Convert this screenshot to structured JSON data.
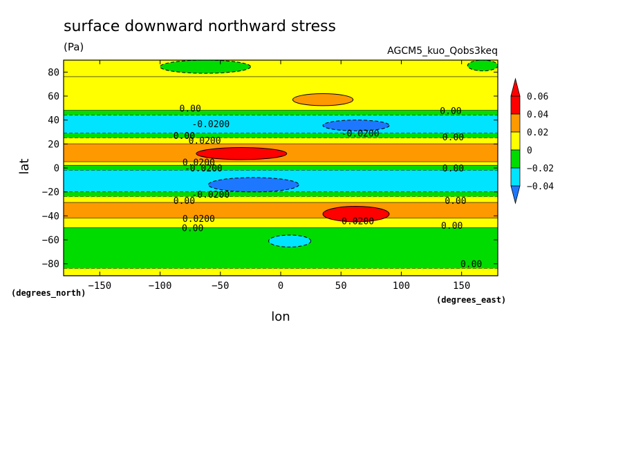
{
  "chart_data": {
    "type": "heatmap",
    "title": "surface downward northward stress",
    "units": "(Pa)",
    "dataset": "AGCM5_kuo_Qobs3keq",
    "xlabel": "lon",
    "ylabel": "lat",
    "x_units": "(degrees_east)",
    "y_units": "(degrees_north)",
    "xlim": [
      -180,
      180
    ],
    "ylim": [
      -90,
      90
    ],
    "x_ticks": [
      -150,
      -100,
      -50,
      0,
      50,
      100,
      150
    ],
    "x_tick_labels": [
      "−150",
      "−100",
      "−50",
      "0",
      "50",
      "100",
      "150"
    ],
    "y_ticks": [
      -80,
      -60,
      -40,
      -20,
      0,
      20,
      40,
      60,
      80
    ],
    "y_tick_labels": [
      "−80",
      "−60",
      "−40",
      "−20",
      "0",
      "20",
      "40",
      "60",
      "80"
    ],
    "colorbar": {
      "levels": [
        -0.04,
        -0.02,
        0,
        0.02,
        0.04,
        0.06
      ],
      "labels": [
        "−0.04",
        "−0.02",
        "0",
        "0.02",
        "0.04",
        "0.06"
      ],
      "colors": [
        "#1e78ff",
        "#00e4ff",
        "#00dc00",
        "#ffff00",
        "#ff9900",
        "#ff0000"
      ],
      "extend": "both"
    },
    "zonal_bands": [
      {
        "lat_min": 76,
        "lat_max": 90,
        "value": 0.005
      },
      {
        "lat_min": 48,
        "lat_max": 76,
        "value": 0.01
      },
      {
        "lat_min": 44,
        "lat_max": 48,
        "value": -0.01
      },
      {
        "lat_min": 29,
        "lat_max": 44,
        "value": -0.03
      },
      {
        "lat_min": 25,
        "lat_max": 29,
        "value": -0.01
      },
      {
        "lat_min": 20,
        "lat_max": 25,
        "value": 0.01
      },
      {
        "lat_min": 5,
        "lat_max": 20,
        "value": 0.03
      },
      {
        "lat_min": 2,
        "lat_max": 5,
        "value": 0.01
      },
      {
        "lat_min": -2,
        "lat_max": 2,
        "value": -0.01
      },
      {
        "lat_min": -20,
        "lat_max": -2,
        "value": -0.03
      },
      {
        "lat_min": -24,
        "lat_max": -20,
        "value": -0.01
      },
      {
        "lat_min": -29,
        "lat_max": -24,
        "value": 0.01
      },
      {
        "lat_min": -42,
        "lat_max": -29,
        "value": 0.03
      },
      {
        "lat_min": -50,
        "lat_max": -42,
        "value": 0.01
      },
      {
        "lat_min": -84,
        "lat_max": -50,
        "value": -0.01
      },
      {
        "lat_min": -90,
        "lat_max": -84,
        "value": 0.01
      }
    ],
    "features": [
      {
        "lon_min": -70,
        "lon_max": 5,
        "lat_min": 7,
        "lat_max": 17,
        "value": 0.05
      },
      {
        "lon_min": 35,
        "lon_max": 90,
        "lat_min": -45,
        "lat_max": -32,
        "value": 0.05
      },
      {
        "lon_min": 10,
        "lon_max": 60,
        "lat_min": 52,
        "lat_max": 62,
        "value": 0.03
      },
      {
        "lon_min": -60,
        "lon_max": 15,
        "lat_min": -20,
        "lat_max": -8,
        "value": -0.05
      },
      {
        "lon_min": 35,
        "lon_max": 90,
        "lat_min": 31,
        "lat_max": 40,
        "value": -0.05
      },
      {
        "lon_min": -10,
        "lon_max": 25,
        "lat_min": -66,
        "lat_max": -56,
        "value": -0.03
      },
      {
        "lon_min": -100,
        "lon_max": -25,
        "lat_min": 79,
        "lat_max": 90,
        "value": -0.01
      },
      {
        "lon_min": 155,
        "lon_max": 180,
        "lat_min": 81,
        "lat_max": 90,
        "value": -0.01
      }
    ],
    "contour_labels": [
      {
        "text": "0.00",
        "lon": -75,
        "lat": 50
      },
      {
        "text": "-0.0200",
        "lon": -58,
        "lat": 37
      },
      {
        "text": "0.00",
        "lon": -80,
        "lat": 27
      },
      {
        "text": "0.0200",
        "lon": -63,
        "lat": 23
      },
      {
        "text": "0.0200",
        "lon": -68,
        "lat": 5
      },
      {
        "text": "-0.0200",
        "lon": -64,
        "lat": 0
      },
      {
        "text": "-0.0200",
        "lon": -58,
        "lat": -22
      },
      {
        "text": "0.00",
        "lon": -80,
        "lat": -27
      },
      {
        "text": "0.0200",
        "lon": -68,
        "lat": -42
      },
      {
        "text": "0.00",
        "lon": -73,
        "lat": -50
      },
      {
        "text": "-0.0200",
        "lon": 66,
        "lat": 29
      },
      {
        "text": "0.0200",
        "lon": 64,
        "lat": -44
      },
      {
        "text": "0.00",
        "lon": 141,
        "lat": 48
      },
      {
        "text": "0.00",
        "lon": 143,
        "lat": 26
      },
      {
        "text": "0.00",
        "lon": 143,
        "lat": 0
      },
      {
        "text": "0.00",
        "lon": 145,
        "lat": -27
      },
      {
        "text": "0.00",
        "lon": 142,
        "lat": -48
      },
      {
        "text": "0.00",
        "lon": 158,
        "lat": -80
      }
    ]
  }
}
